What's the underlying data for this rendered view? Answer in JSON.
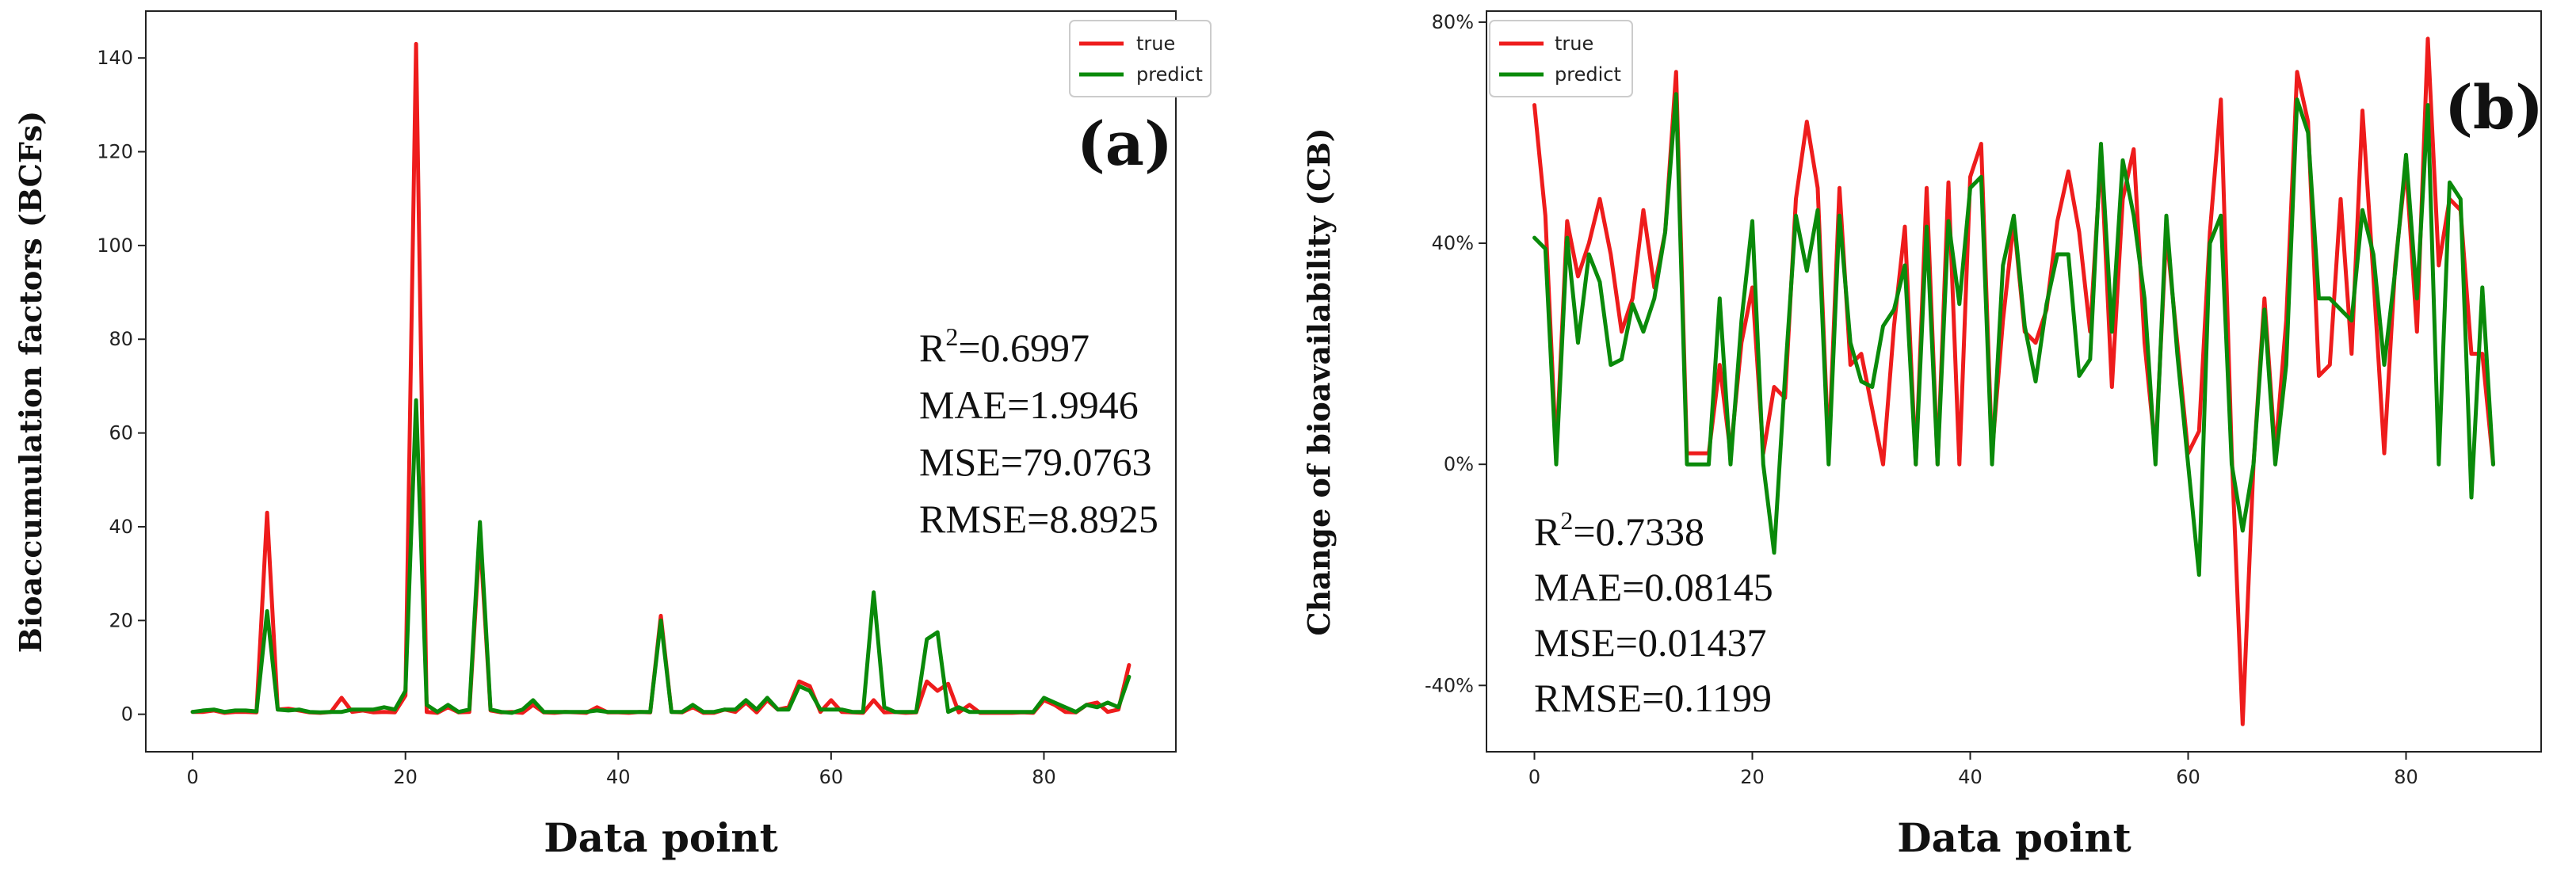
{
  "chart_data": [
    {
      "type": "line",
      "panel_label": "(a)",
      "xlabel": "Data point",
      "ylabel": "Bioaccumulation factors (BCFs)",
      "xlim": [
        -4.4,
        92.4
      ],
      "ylim": [
        -8,
        150
      ],
      "xticks": [
        0,
        20,
        40,
        60,
        80
      ],
      "xtick_labels": [
        "0",
        "20",
        "40",
        "60",
        "80"
      ],
      "yticks": [
        0,
        20,
        40,
        60,
        80,
        100,
        120,
        140
      ],
      "ytick_labels": [
        "0",
        "20",
        "40",
        "60",
        "80",
        "100",
        "120",
        "140"
      ],
      "legend": {
        "position": "top-right",
        "entries": [
          "true",
          "predict"
        ]
      },
      "metrics": {
        "r2": {
          "base": "R",
          "sup": "2",
          "rest": "=0.6997"
        },
        "mae": "MAE=1.9946",
        "mse": "MSE=79.0763",
        "rmse": "RMSE=8.8925"
      },
      "series": [
        {
          "name": "true",
          "color": "#ee1c1c",
          "values": [
            0.5,
            0.5,
            0.8,
            0.3,
            0.5,
            0.5,
            0.4,
            43,
            1,
            1.2,
            0.8,
            0.4,
            0.3,
            0.5,
            3.5,
            0.5,
            0.8,
            0.4,
            0.5,
            0.4,
            4,
            143,
            0.5,
            0.3,
            1.5,
            0.4,
            0.5,
            38,
            0.8,
            0.4,
            0.5,
            0.3,
            2,
            0.4,
            0.3,
            0.5,
            0.4,
            0.3,
            1.5,
            0.4,
            0.4,
            0.3,
            0.5,
            0.4,
            21,
            0.5,
            0.4,
            1.5,
            0.3,
            0.3,
            1,
            0.5,
            2.5,
            0.4,
            3,
            1,
            1.5,
            7,
            6,
            0.5,
            3,
            0.5,
            0.4,
            0.3,
            3,
            0.4,
            0.5,
            0.3,
            0.4,
            7,
            5,
            6.5,
            0.4,
            2,
            0.3,
            0.3,
            0.3,
            0.3,
            0.4,
            0.3,
            3,
            2,
            0.5,
            0.4,
            2,
            2.5,
            0.5,
            1,
            10.5
          ]
        },
        {
          "name": "predict",
          "color": "#0a8a0a",
          "values": [
            0.5,
            0.8,
            1,
            0.5,
            0.8,
            0.8,
            0.6,
            22,
            1,
            0.8,
            1,
            0.5,
            0.4,
            0.5,
            0.5,
            1,
            1,
            1,
            1.5,
            1,
            5,
            67,
            2,
            0.5,
            2,
            0.5,
            1,
            41,
            1,
            0.5,
            0.3,
            1,
            3,
            0.5,
            0.5,
            0.5,
            0.5,
            0.5,
            0.8,
            0.5,
            0.5,
            0.5,
            0.5,
            0.5,
            20,
            0.5,
            0.5,
            2,
            0.5,
            0.5,
            1,
            1,
            3,
            1,
            3.5,
            1,
            1,
            6,
            5,
            1,
            1,
            1,
            0.5,
            0.5,
            26,
            1.5,
            0.5,
            0.5,
            0.5,
            16,
            17.5,
            0.5,
            1.5,
            0.5,
            0.5,
            0.5,
            0.5,
            0.5,
            0.5,
            0.5,
            3.5,
            2.5,
            1.5,
            0.5,
            2,
            1.5,
            2.5,
            1.5,
            8
          ]
        }
      ]
    },
    {
      "type": "line",
      "panel_label": "(b)",
      "xlabel": "Data point",
      "ylabel": "Change of bioavailability (CB)",
      "xlim": [
        -4.4,
        92.4
      ],
      "ylim": [
        -0.52,
        0.82
      ],
      "xticks": [
        0,
        20,
        40,
        60,
        80
      ],
      "xtick_labels": [
        "0",
        "20",
        "40",
        "60",
        "80"
      ],
      "yticks": [
        -0.4,
        0,
        0.4,
        0.8
      ],
      "ytick_labels": [
        "-40%",
        "0%",
        "40%",
        "80%"
      ],
      "legend": {
        "position": "top-left",
        "entries": [
          "true",
          "predict"
        ]
      },
      "metrics": {
        "r2": {
          "base": "R",
          "sup": "2",
          "rest": "=0.7338"
        },
        "mae": "MAE=0.08145",
        "mse": "MSE=0.01437",
        "rmse": "RMSE=0.1199"
      },
      "series": [
        {
          "name": "true",
          "color": "#ee1c1c",
          "values": [
            0.65,
            0.45,
            0.02,
            0.44,
            0.34,
            0.4,
            0.48,
            0.38,
            0.24,
            0.3,
            0.46,
            0.32,
            0.42,
            0.71,
            0.02,
            0.02,
            0.02,
            0.18,
            0.02,
            0.22,
            0.32,
            0.02,
            0.14,
            0.12,
            0.48,
            0.62,
            0.5,
            0.02,
            0.5,
            0.18,
            0.2,
            0.1,
            0.0,
            0.25,
            0.43,
            0.0,
            0.5,
            0.0,
            0.51,
            0.0,
            0.52,
            0.58,
            0.02,
            0.26,
            0.44,
            0.24,
            0.22,
            0.28,
            0.44,
            0.53,
            0.42,
            0.24,
            0.56,
            0.14,
            0.48,
            0.57,
            0.22,
            0.02,
            0.42,
            0.22,
            0.02,
            0.06,
            0.42,
            0.66,
            0.02,
            -0.47,
            0.0,
            0.3,
            0.02,
            0.26,
            0.71,
            0.62,
            0.16,
            0.18,
            0.48,
            0.2,
            0.64,
            0.34,
            0.02,
            0.36,
            0.54,
            0.24,
            0.77,
            0.36,
            0.48,
            0.46,
            0.2,
            0.2,
            0.0
          ]
        },
        {
          "name": "predict",
          "color": "#0a8a0a",
          "values": [
            0.41,
            0.39,
            0.0,
            0.41,
            0.22,
            0.38,
            0.33,
            0.18,
            0.19,
            0.29,
            0.24,
            0.3,
            0.42,
            0.67,
            0.0,
            0.0,
            0.0,
            0.3,
            0.0,
            0.26,
            0.44,
            0.0,
            -0.16,
            0.16,
            0.45,
            0.35,
            0.46,
            0.0,
            0.45,
            0.22,
            0.15,
            0.14,
            0.25,
            0.28,
            0.36,
            0.0,
            0.43,
            0.0,
            0.44,
            0.29,
            0.5,
            0.52,
            0.0,
            0.36,
            0.45,
            0.25,
            0.15,
            0.29,
            0.38,
            0.38,
            0.16,
            0.19,
            0.58,
            0.24,
            0.55,
            0.45,
            0.3,
            0.0,
            0.45,
            0.2,
            0.0,
            -0.2,
            0.4,
            0.45,
            0.0,
            -0.12,
            0.0,
            0.28,
            0.0,
            0.18,
            0.66,
            0.6,
            0.3,
            0.3,
            0.28,
            0.26,
            0.46,
            0.38,
            0.18,
            0.35,
            0.56,
            0.3,
            0.65,
            0.0,
            0.51,
            0.48,
            -0.06,
            0.32,
            0.0
          ]
        }
      ]
    }
  ]
}
